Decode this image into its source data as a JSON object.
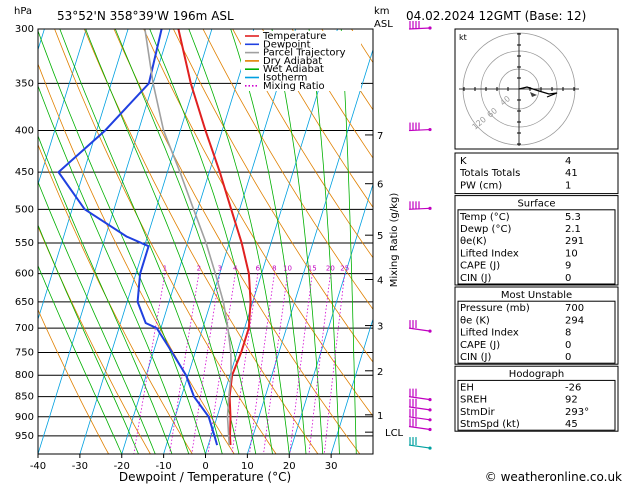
{
  "header": {
    "location": "53°52'N  358°39'W  196m  ASL",
    "datetime": "04.02.2024  12GMT  (Base: 12)",
    "km_label": "km",
    "asl_label": "ASL"
  },
  "chart_data": {
    "type": "line",
    "title": "",
    "xlabel": "Dewpoint / Temperature (°C)",
    "ylabel": "hPa",
    "right_axis_label": "Mixing Ratio (g/kg)",
    "xlim": [
      -40,
      40
    ],
    "ylim": [
      300,
      1000
    ],
    "x_ticks": [
      -40,
      -30,
      -20,
      -10,
      0,
      10,
      20,
      30
    ],
    "p_ticks": [
      300,
      350,
      400,
      450,
      500,
      550,
      600,
      650,
      700,
      750,
      800,
      850,
      900,
      950
    ],
    "km_ticks": [
      {
        "km": "7",
        "p": 405
      },
      {
        "km": "6",
        "p": 465
      },
      {
        "km": "5",
        "p": 538
      },
      {
        "km": "4",
        "p": 610
      },
      {
        "km": "3",
        "p": 695
      },
      {
        "km": "2",
        "p": 790
      },
      {
        "km": "1",
        "p": 895
      }
    ],
    "lcl": {
      "label": "LCL",
      "p": 940
    },
    "mixing_ratio_labels": [
      "1",
      "2",
      "3",
      "4",
      "6",
      "8",
      "10",
      "15",
      "20",
      "25"
    ],
    "mixing_ratio_values": [
      1,
      2,
      3,
      4,
      6,
      8,
      10,
      15,
      20,
      25
    ],
    "legend": [
      {
        "name": "Temperature",
        "color": "#e02020",
        "dotted": false
      },
      {
        "name": "Dewpoint",
        "color": "#2040e0",
        "dotted": false
      },
      {
        "name": "Parcel Trajectory",
        "color": "#a0a0a0",
        "dotted": false
      },
      {
        "name": "Dry Adiabat",
        "color": "#e08000",
        "dotted": false
      },
      {
        "name": "Wet Adiabat",
        "color": "#00b000",
        "dotted": false
      },
      {
        "name": "Isotherm",
        "color": "#00a0e0",
        "dotted": false
      },
      {
        "name": "Mixing Ratio",
        "color": "#d000d0",
        "dotted": true
      }
    ],
    "series": [
      {
        "name": "Temperature",
        "color": "#e02020",
        "points": [
          [
            300,
            -38
          ],
          [
            350,
            -31
          ],
          [
            400,
            -24
          ],
          [
            450,
            -17.5
          ],
          [
            500,
            -12
          ],
          [
            550,
            -7
          ],
          [
            600,
            -3
          ],
          [
            650,
            -0.5
          ],
          [
            700,
            1
          ],
          [
            750,
            1
          ],
          [
            800,
            0.5
          ],
          [
            850,
            1.5
          ],
          [
            900,
            3.2
          ],
          [
            950,
            4.5
          ],
          [
            975,
            5.3
          ]
        ]
      },
      {
        "name": "Dewpoint",
        "color": "#2040e0",
        "points": [
          [
            300,
            -42
          ],
          [
            350,
            -41
          ],
          [
            400,
            -48
          ],
          [
            450,
            -56
          ],
          [
            500,
            -47
          ],
          [
            540,
            -35
          ],
          [
            555,
            -29
          ],
          [
            600,
            -29
          ],
          [
            650,
            -27.5
          ],
          [
            690,
            -24
          ],
          [
            700,
            -21
          ],
          [
            750,
            -15.5
          ],
          [
            800,
            -10.5
          ],
          [
            850,
            -7
          ],
          [
            900,
            -2
          ],
          [
            950,
            0.8
          ],
          [
            975,
            2.1
          ]
        ]
      },
      {
        "name": "Parcel Trajectory",
        "color": "#a0a0a0",
        "points": [
          [
            300,
            -46
          ],
          [
            350,
            -40
          ],
          [
            400,
            -34
          ],
          [
            450,
            -27
          ],
          [
            500,
            -21
          ],
          [
            550,
            -15.5
          ],
          [
            600,
            -11
          ],
          [
            650,
            -7
          ],
          [
            700,
            -4
          ],
          [
            750,
            -1.5
          ],
          [
            800,
            0.3
          ],
          [
            850,
            1.3
          ],
          [
            900,
            2.5
          ],
          [
            950,
            4.2
          ],
          [
            975,
            5
          ]
        ]
      }
    ]
  },
  "hodograph": {
    "label": "kt",
    "ring_labels": [
      "40",
      "60",
      "120"
    ],
    "colors": {
      "trace": "#000000",
      "storm": "#404040"
    }
  },
  "wind_barbs": {
    "color": "#c000c0",
    "low_color": "#00a0a0",
    "levels_p": [
      300,
      400,
      500,
      700,
      850,
      875,
      900,
      925,
      975
    ]
  },
  "indices": {
    "top": [
      {
        "label": "K",
        "value": "4"
      },
      {
        "label": "Totals Totals",
        "value": "41"
      },
      {
        "label": "PW (cm)",
        "value": "1"
      }
    ],
    "surface_title": "Surface",
    "surface": [
      {
        "label": "Temp (°C)",
        "value": "5.3"
      },
      {
        "label": "Dewp (°C)",
        "value": "2.1"
      },
      {
        "label": "θe(K)",
        "value": "291"
      },
      {
        "label": "Lifted Index",
        "value": "10"
      },
      {
        "label": "CAPE (J)",
        "value": "9"
      },
      {
        "label": "CIN (J)",
        "value": "0"
      }
    ],
    "unstable_title": "Most Unstable",
    "unstable": [
      {
        "label": "Pressure (mb)",
        "value": "700"
      },
      {
        "label": "θe (K)",
        "value": "294"
      },
      {
        "label": "Lifted Index",
        "value": "8"
      },
      {
        "label": "CAPE (J)",
        "value": "0"
      },
      {
        "label": "CIN (J)",
        "value": "0"
      }
    ],
    "hodo_title": "Hodograph",
    "hodo": [
      {
        "label": "EH",
        "value": "-26"
      },
      {
        "label": "SREH",
        "value": "92"
      },
      {
        "label": "StmDir",
        "value": "293°"
      },
      {
        "label": "StmSpd (kt)",
        "value": "45"
      }
    ]
  },
  "footer": {
    "credit": "© weatheronline.co.uk"
  }
}
